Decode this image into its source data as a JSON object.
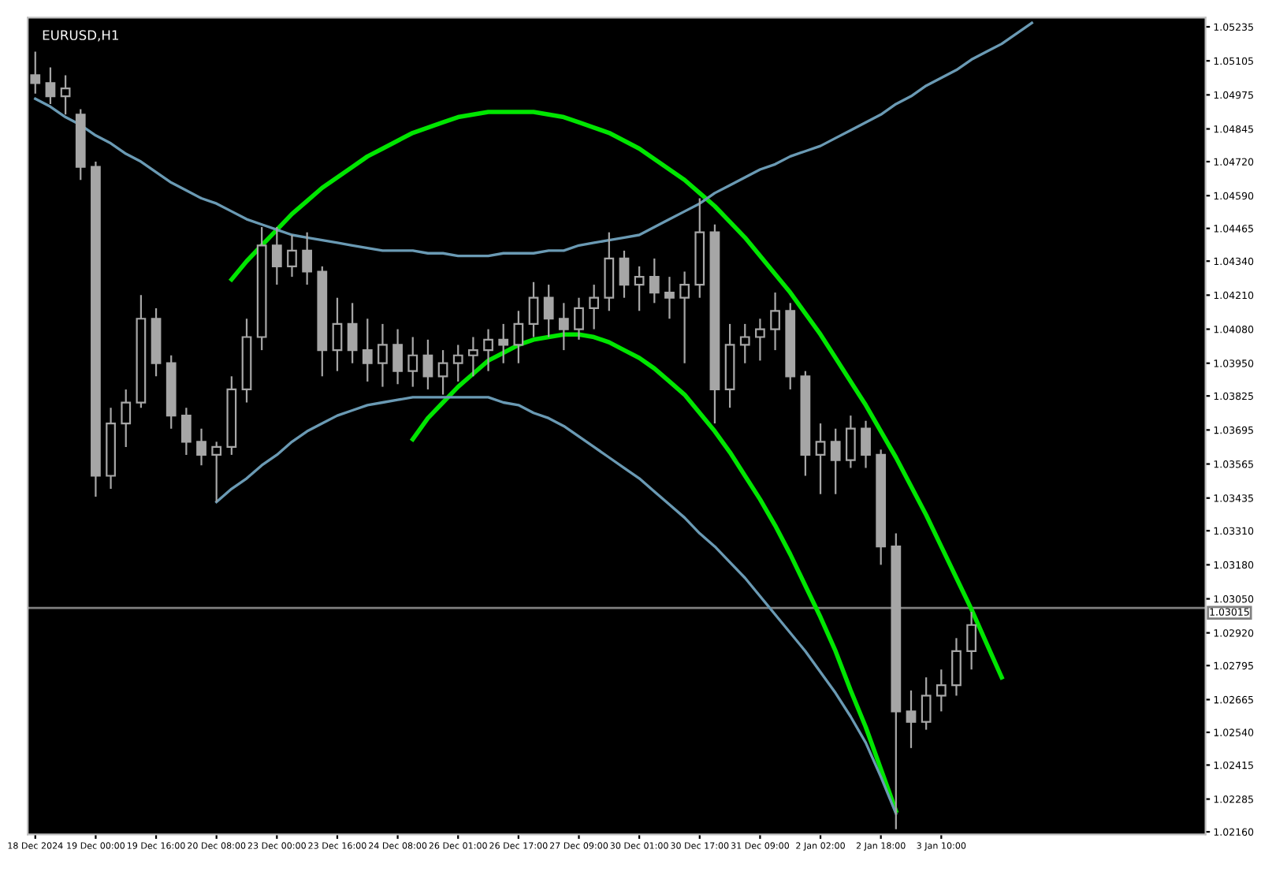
{
  "chart_data": {
    "type": "candlestick",
    "title": "EURUSD,H1",
    "color": "#a6a6a6",
    "categories": [
      "18 Dec 2024",
      null,
      null,
      null,
      "19 Dec 00:00",
      null,
      null,
      null,
      "19 Dec 16:00",
      null,
      null,
      null,
      "20 Dec 08:00",
      null,
      null,
      null,
      "23 Dec 00:00",
      null,
      null,
      null,
      "23 Dec 16:00",
      null,
      null,
      null,
      "24 Dec 08:00",
      null,
      null,
      null,
      "26 Dec 01:00",
      null,
      null,
      null,
      "26 Dec 17:00",
      null,
      null,
      null,
      "27 Dec 09:00",
      null,
      null,
      null,
      "30 Dec 01:00",
      null,
      null,
      null,
      "30 Dec 17:00",
      null,
      null,
      null,
      "31 Dec 09:00",
      null,
      null,
      null,
      "2 Jan 02:00",
      null,
      null,
      null,
      "2 Jan 18:00",
      null,
      null,
      null,
      "3 Jan 10:00",
      null,
      null,
      null,
      null,
      null,
      null,
      null,
      null,
      null,
      null,
      null,
      null,
      null,
      null,
      null,
      null,
      null
    ],
    "ohlc": [
      [
        1.0505,
        1.0514,
        1.0498,
        1.0502
      ],
      [
        1.0502,
        1.0508,
        1.0494,
        1.0497
      ],
      [
        1.0497,
        1.0505,
        1.049,
        1.05
      ],
      [
        1.049,
        1.0492,
        1.0465,
        1.047
      ],
      [
        1.047,
        1.0472,
        1.0344,
        1.0352
      ],
      [
        1.0352,
        1.0378,
        1.0347,
        1.0372
      ],
      [
        1.0372,
        1.0385,
        1.0363,
        1.038
      ],
      [
        1.038,
        1.0421,
        1.0378,
        1.0412
      ],
      [
        1.0412,
        1.0416,
        1.039,
        1.0395
      ],
      [
        1.0395,
        1.0398,
        1.037,
        1.0375
      ],
      [
        1.0375,
        1.0378,
        1.036,
        1.0365
      ],
      [
        1.0365,
        1.037,
        1.0356,
        1.036
      ],
      [
        1.036,
        1.0365,
        1.0342,
        1.0363
      ],
      [
        1.0363,
        1.039,
        1.036,
        1.0385
      ],
      [
        1.0385,
        1.0412,
        1.038,
        1.0405
      ],
      [
        1.0405,
        1.0447,
        1.04,
        1.044
      ],
      [
        1.044,
        1.0447,
        1.0425,
        1.0432
      ],
      [
        1.0432,
        1.0444,
        1.0428,
        1.0438
      ],
      [
        1.0438,
        1.0445,
        1.0425,
        1.043
      ],
      [
        1.043,
        1.0432,
        1.039,
        1.04
      ],
      [
        1.04,
        1.042,
        1.0392,
        1.041
      ],
      [
        1.041,
        1.0418,
        1.0395,
        1.04
      ],
      [
        1.04,
        1.0412,
        1.0388,
        1.0395
      ],
      [
        1.0395,
        1.041,
        1.0386,
        1.0402
      ],
      [
        1.0402,
        1.0408,
        1.0387,
        1.0392
      ],
      [
        1.0392,
        1.0405,
        1.0386,
        1.0398
      ],
      [
        1.0398,
        1.0404,
        1.0385,
        1.039
      ],
      [
        1.039,
        1.04,
        1.0383,
        1.0395
      ],
      [
        1.0395,
        1.0402,
        1.0388,
        1.0398
      ],
      [
        1.0398,
        1.0405,
        1.039,
        1.04
      ],
      [
        1.04,
        1.0408,
        1.0392,
        1.0404
      ],
      [
        1.0404,
        1.041,
        1.0395,
        1.0402
      ],
      [
        1.0402,
        1.0415,
        1.0395,
        1.041
      ],
      [
        1.041,
        1.0426,
        1.0405,
        1.042
      ],
      [
        1.042,
        1.0425,
        1.0405,
        1.0412
      ],
      [
        1.0412,
        1.0418,
        1.04,
        1.0408
      ],
      [
        1.0408,
        1.042,
        1.0404,
        1.0416
      ],
      [
        1.0416,
        1.0425,
        1.0408,
        1.042
      ],
      [
        1.042,
        1.0445,
        1.0415,
        1.0435
      ],
      [
        1.0435,
        1.0438,
        1.042,
        1.0425
      ],
      [
        1.0425,
        1.0432,
        1.0415,
        1.0428
      ],
      [
        1.0428,
        1.0435,
        1.0418,
        1.0422
      ],
      [
        1.0422,
        1.0428,
        1.0412,
        1.042
      ],
      [
        1.042,
        1.043,
        1.0395,
        1.0425
      ],
      [
        1.0425,
        1.0458,
        1.042,
        1.0445
      ],
      [
        1.0445,
        1.0448,
        1.0372,
        1.0385
      ],
      [
        1.0385,
        1.041,
        1.0378,
        1.0402
      ],
      [
        1.0402,
        1.041,
        1.0395,
        1.0405
      ],
      [
        1.0405,
        1.0412,
        1.0396,
        1.0408
      ],
      [
        1.0408,
        1.0422,
        1.04,
        1.0415
      ],
      [
        1.0415,
        1.0418,
        1.0385,
        1.039
      ],
      [
        1.039,
        1.0392,
        1.0352,
        1.036
      ],
      [
        1.036,
        1.0372,
        1.0345,
        1.0365
      ],
      [
        1.0365,
        1.037,
        1.0345,
        1.0358
      ],
      [
        1.0358,
        1.0375,
        1.0355,
        1.037
      ],
      [
        1.037,
        1.0373,
        1.0355,
        1.036
      ],
      [
        1.036,
        1.0362,
        1.0318,
        1.0325
      ],
      [
        1.0325,
        1.033,
        1.0217,
        1.0262
      ],
      [
        1.0262,
        1.027,
        1.0248,
        1.0258
      ],
      [
        1.0258,
        1.0275,
        1.0255,
        1.0268
      ],
      [
        1.0268,
        1.0278,
        1.0262,
        1.0272
      ],
      [
        1.0272,
        1.029,
        1.0268,
        1.0285
      ],
      [
        1.0285,
        1.03,
        1.0278,
        1.0295
      ],
      null,
      null,
      null,
      null,
      null,
      null,
      null,
      null,
      null,
      null,
      null,
      null,
      null,
      null,
      null
    ],
    "series": [
      {
        "type": "line",
        "color": "#00e600",
        "values": [
          null,
          null,
          null,
          null,
          null,
          null,
          null,
          null,
          null,
          null,
          null,
          null,
          null,
          1.0427,
          1.0434,
          1.044,
          1.0446,
          1.0452,
          1.0457,
          1.0462,
          1.0466,
          1.047,
          1.0474,
          1.0477,
          1.048,
          1.0483,
          1.0485,
          1.0487,
          1.0489,
          1.049,
          1.0491,
          1.0491,
          1.0491,
          1.0491,
          1.049,
          1.0489,
          1.0487,
          1.0485,
          1.0483,
          1.048,
          1.0477,
          1.0473,
          1.0469,
          1.0465,
          1.046,
          1.0455,
          1.0449,
          1.0443,
          1.0436,
          1.0429,
          1.0422,
          1.0414,
          1.0406,
          1.0397,
          1.0388,
          1.0379,
          1.0369,
          1.0359,
          1.0348,
          1.0337,
          1.0325,
          1.0313,
          1.0301,
          1.0288,
          1.0275,
          null,
          null,
          null,
          null,
          null,
          null,
          null,
          null,
          null,
          null,
          null,
          null,
          null
        ]
      },
      {
        "type": "line",
        "color": "#00e600",
        "values": [
          null,
          null,
          null,
          null,
          null,
          null,
          null,
          null,
          null,
          null,
          null,
          null,
          null,
          null,
          null,
          null,
          null,
          null,
          null,
          null,
          null,
          null,
          null,
          null,
          null,
          1.0366,
          1.0374,
          1.038,
          1.0386,
          1.0391,
          1.0396,
          1.0399,
          1.0402,
          1.0404,
          1.0405,
          1.0406,
          1.0406,
          1.0405,
          1.0403,
          1.04,
          1.0397,
          1.0393,
          1.0388,
          1.0383,
          1.0376,
          1.0369,
          1.0361,
          1.0352,
          1.0343,
          1.0333,
          1.0322,
          1.031,
          1.0298,
          1.0285,
          1.027,
          1.0256,
          1.024,
          1.0224,
          null,
          null,
          null,
          null,
          null,
          null,
          null,
          null,
          null,
          null,
          null,
          null,
          null,
          null,
          null,
          null,
          null,
          null,
          null,
          null
        ]
      },
      {
        "type": "line",
        "color": "#6a9ab4",
        "values": [
          1.0496,
          1.0493,
          1.0489,
          1.0486,
          1.0482,
          1.0479,
          1.0475,
          1.0472,
          1.0468,
          1.0464,
          1.0461,
          1.0458,
          1.0456,
          1.0453,
          1.045,
          1.0448,
          1.0446,
          1.0444,
          1.0443,
          1.0442,
          1.0441,
          1.044,
          1.0439,
          1.0438,
          1.0438,
          1.0438,
          1.0437,
          1.0437,
          1.0436,
          1.0436,
          1.0436,
          1.0437,
          1.0437,
          1.0437,
          1.0438,
          1.0438,
          1.044,
          1.0441,
          1.0442,
          1.0443,
          1.0444,
          1.0447,
          1.045,
          1.0453,
          1.0456,
          1.046,
          1.0463,
          1.0466,
          1.0469,
          1.0471,
          1.0474,
          1.0476,
          1.0478,
          1.0481,
          1.0484,
          1.0487,
          1.049,
          1.0494,
          1.0497,
          1.0501,
          1.0504,
          1.0507,
          1.0511,
          1.0514,
          1.0517,
          1.0521,
          1.0525,
          null,
          null,
          null,
          null,
          null,
          null,
          null,
          null,
          null,
          null,
          null
        ]
      },
      {
        "type": "line",
        "color": "#6a9ab4",
        "values": [
          null,
          null,
          null,
          null,
          null,
          null,
          null,
          null,
          null,
          null,
          null,
          null,
          1.0342,
          1.0347,
          1.0351,
          1.0356,
          1.036,
          1.0365,
          1.0369,
          1.0372,
          1.0375,
          1.0377,
          1.0379,
          1.038,
          1.0381,
          1.0382,
          1.0382,
          1.0382,
          1.0382,
          1.0382,
          1.0382,
          1.038,
          1.0379,
          1.0376,
          1.0374,
          1.0371,
          1.0367,
          1.0363,
          1.0359,
          1.0355,
          1.0351,
          1.0346,
          1.0341,
          1.0336,
          1.033,
          1.0325,
          1.0319,
          1.0313,
          1.0306,
          1.0299,
          1.0292,
          1.0285,
          1.0277,
          1.0269,
          1.026,
          1.025,
          1.0237,
          1.0223,
          null,
          null,
          null,
          null,
          null,
          null,
          null,
          null,
          null,
          null,
          null,
          null,
          null,
          null,
          null,
          null,
          null,
          null,
          null,
          null
        ]
      }
    ],
    "ylim": [
      1.0215,
      1.0527
    ],
    "yticks": [
      {
        "value": 1.0216,
        "label": "1.02160"
      },
      {
        "value": 1.02285,
        "label": "1.02285"
      },
      {
        "value": 1.02415,
        "label": "1.02415"
      },
      {
        "value": 1.0254,
        "label": "1.02540"
      },
      {
        "value": 1.02665,
        "label": "1.02665"
      },
      {
        "value": 1.02795,
        "label": "1.02795"
      },
      {
        "value": 1.0292,
        "label": "1.02920"
      },
      {
        "value": 1.0305,
        "label": "1.03050"
      },
      {
        "value": 1.0318,
        "label": "1.03180"
      },
      {
        "value": 1.0331,
        "label": "1.03310"
      },
      {
        "value": 1.03435,
        "label": "1.03435"
      },
      {
        "value": 1.03565,
        "label": "1.03565"
      },
      {
        "value": 1.03695,
        "label": "1.03695"
      },
      {
        "value": 1.03825,
        "label": "1.03825"
      },
      {
        "value": 1.0395,
        "label": "1.03950"
      },
      {
        "value": 1.0408,
        "label": "1.04080"
      },
      {
        "value": 1.0421,
        "label": "1.04210"
      },
      {
        "value": 1.0434,
        "label": "1.04340"
      },
      {
        "value": 1.04465,
        "label": "1.04465"
      },
      {
        "value": 1.0459,
        "label": "1.04590"
      },
      {
        "value": 1.0472,
        "label": "1.04720"
      },
      {
        "value": 1.04845,
        "label": "1.04845"
      },
      {
        "value": 1.04975,
        "label": "1.04975"
      },
      {
        "value": 1.05105,
        "label": "1.05105"
      },
      {
        "value": 1.05235,
        "label": "1.05235"
      }
    ],
    "ref_lines": [
      {
        "axis": "y",
        "value": 1.03015,
        "label": "1.03015",
        "color": "#808080"
      }
    ],
    "grid": false,
    "legend": false
  }
}
